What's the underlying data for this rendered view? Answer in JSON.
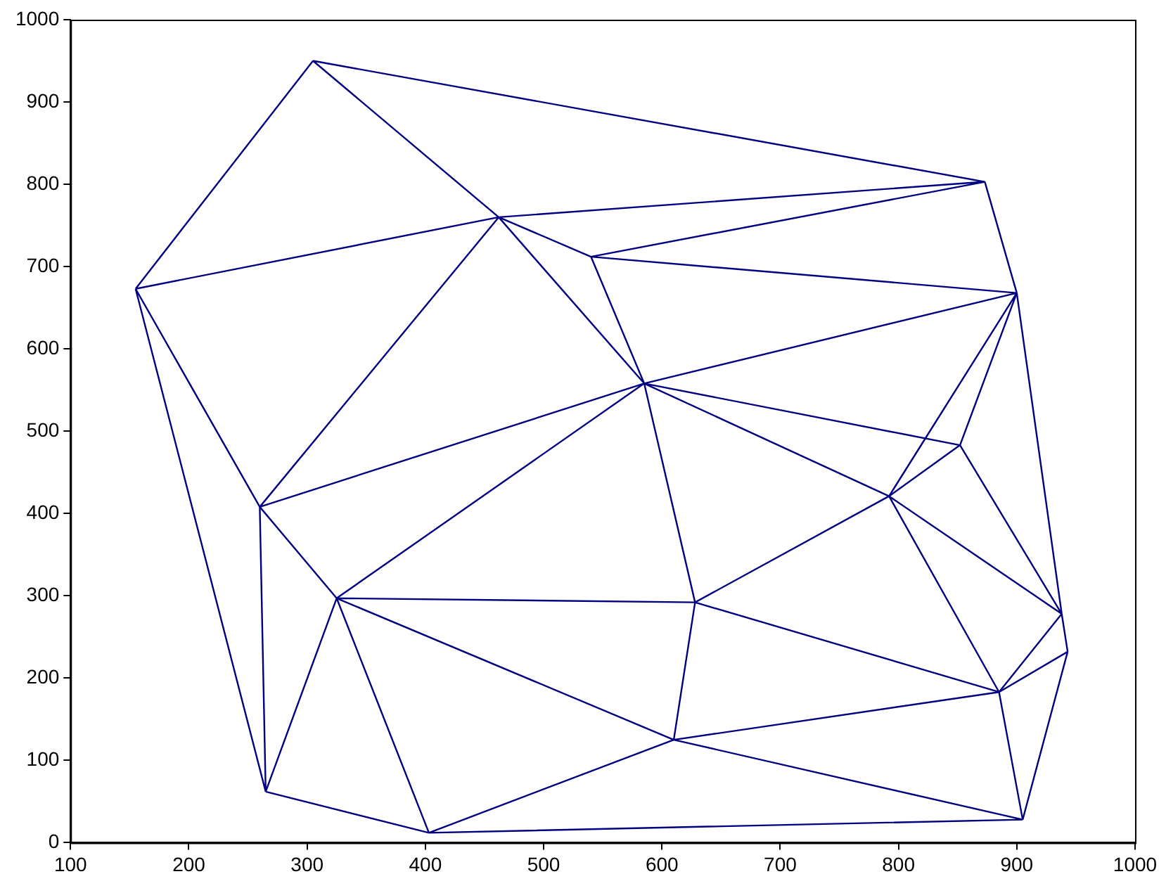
{
  "chart_data": {
    "type": "line",
    "xlim": [
      100,
      1000
    ],
    "ylim": [
      0,
      1000
    ],
    "xticks": [
      100,
      200,
      300,
      400,
      500,
      600,
      700,
      800,
      900,
      1000
    ],
    "yticks": [
      0,
      100,
      200,
      300,
      400,
      500,
      600,
      700,
      800,
      900,
      1000
    ],
    "grid": false,
    "legend": false,
    "marker": "none",
    "line_style": "solid",
    "series": [
      {
        "color": "#000080",
        "x": [
          305,
          155,
          null,
          305,
          462,
          null,
          305,
          873,
          null,
          155,
          462,
          null,
          155,
          260,
          null,
          155,
          265,
          null,
          462,
          873,
          null,
          462,
          540,
          null,
          462,
          585,
          null,
          462,
          260,
          null,
          540,
          873,
          null,
          540,
          900,
          null,
          540,
          585,
          null,
          873,
          900,
          null,
          585,
          900,
          null,
          585,
          260,
          null,
          585,
          325,
          null,
          585,
          852,
          null,
          585,
          792,
          null,
          585,
          628,
          null,
          900,
          852,
          null,
          900,
          792,
          null,
          900,
          938,
          null,
          852,
          792,
          null,
          852,
          938,
          null,
          792,
          938,
          null,
          792,
          885,
          null,
          792,
          628,
          null,
          260,
          265,
          null,
          260,
          325,
          null,
          325,
          265,
          null,
          325,
          403,
          null,
          325,
          628,
          null,
          325,
          610,
          null,
          265,
          403,
          null,
          403,
          610,
          null,
          403,
          905,
          null,
          628,
          610,
          null,
          628,
          885,
          null,
          610,
          885,
          null,
          610,
          905,
          null,
          885,
          938,
          null,
          885,
          943,
          null,
          885,
          905,
          null,
          938,
          943,
          null,
          943,
          905
        ],
        "values": [
          950,
          673,
          null,
          950,
          760,
          null,
          950,
          803,
          null,
          673,
          760,
          null,
          673,
          408,
          null,
          673,
          62,
          null,
          760,
          803,
          null,
          760,
          712,
          null,
          760,
          558,
          null,
          760,
          408,
          null,
          712,
          803,
          null,
          712,
          668,
          null,
          712,
          558,
          null,
          803,
          668,
          null,
          558,
          668,
          null,
          558,
          408,
          null,
          558,
          297,
          null,
          558,
          483,
          null,
          558,
          421,
          null,
          558,
          292,
          null,
          668,
          483,
          null,
          668,
          421,
          null,
          668,
          278,
          null,
          483,
          421,
          null,
          483,
          278,
          null,
          421,
          278,
          null,
          421,
          183,
          null,
          421,
          292,
          null,
          408,
          62,
          null,
          408,
          297,
          null,
          297,
          62,
          null,
          297,
          12,
          null,
          297,
          292,
          null,
          297,
          125,
          null,
          62,
          12,
          null,
          12,
          125,
          null,
          12,
          28,
          null,
          292,
          125,
          null,
          292,
          183,
          null,
          125,
          183,
          null,
          125,
          28,
          null,
          183,
          278,
          null,
          183,
          232,
          null,
          183,
          28,
          null,
          278,
          232,
          null,
          232,
          28
        ]
      }
    ]
  }
}
